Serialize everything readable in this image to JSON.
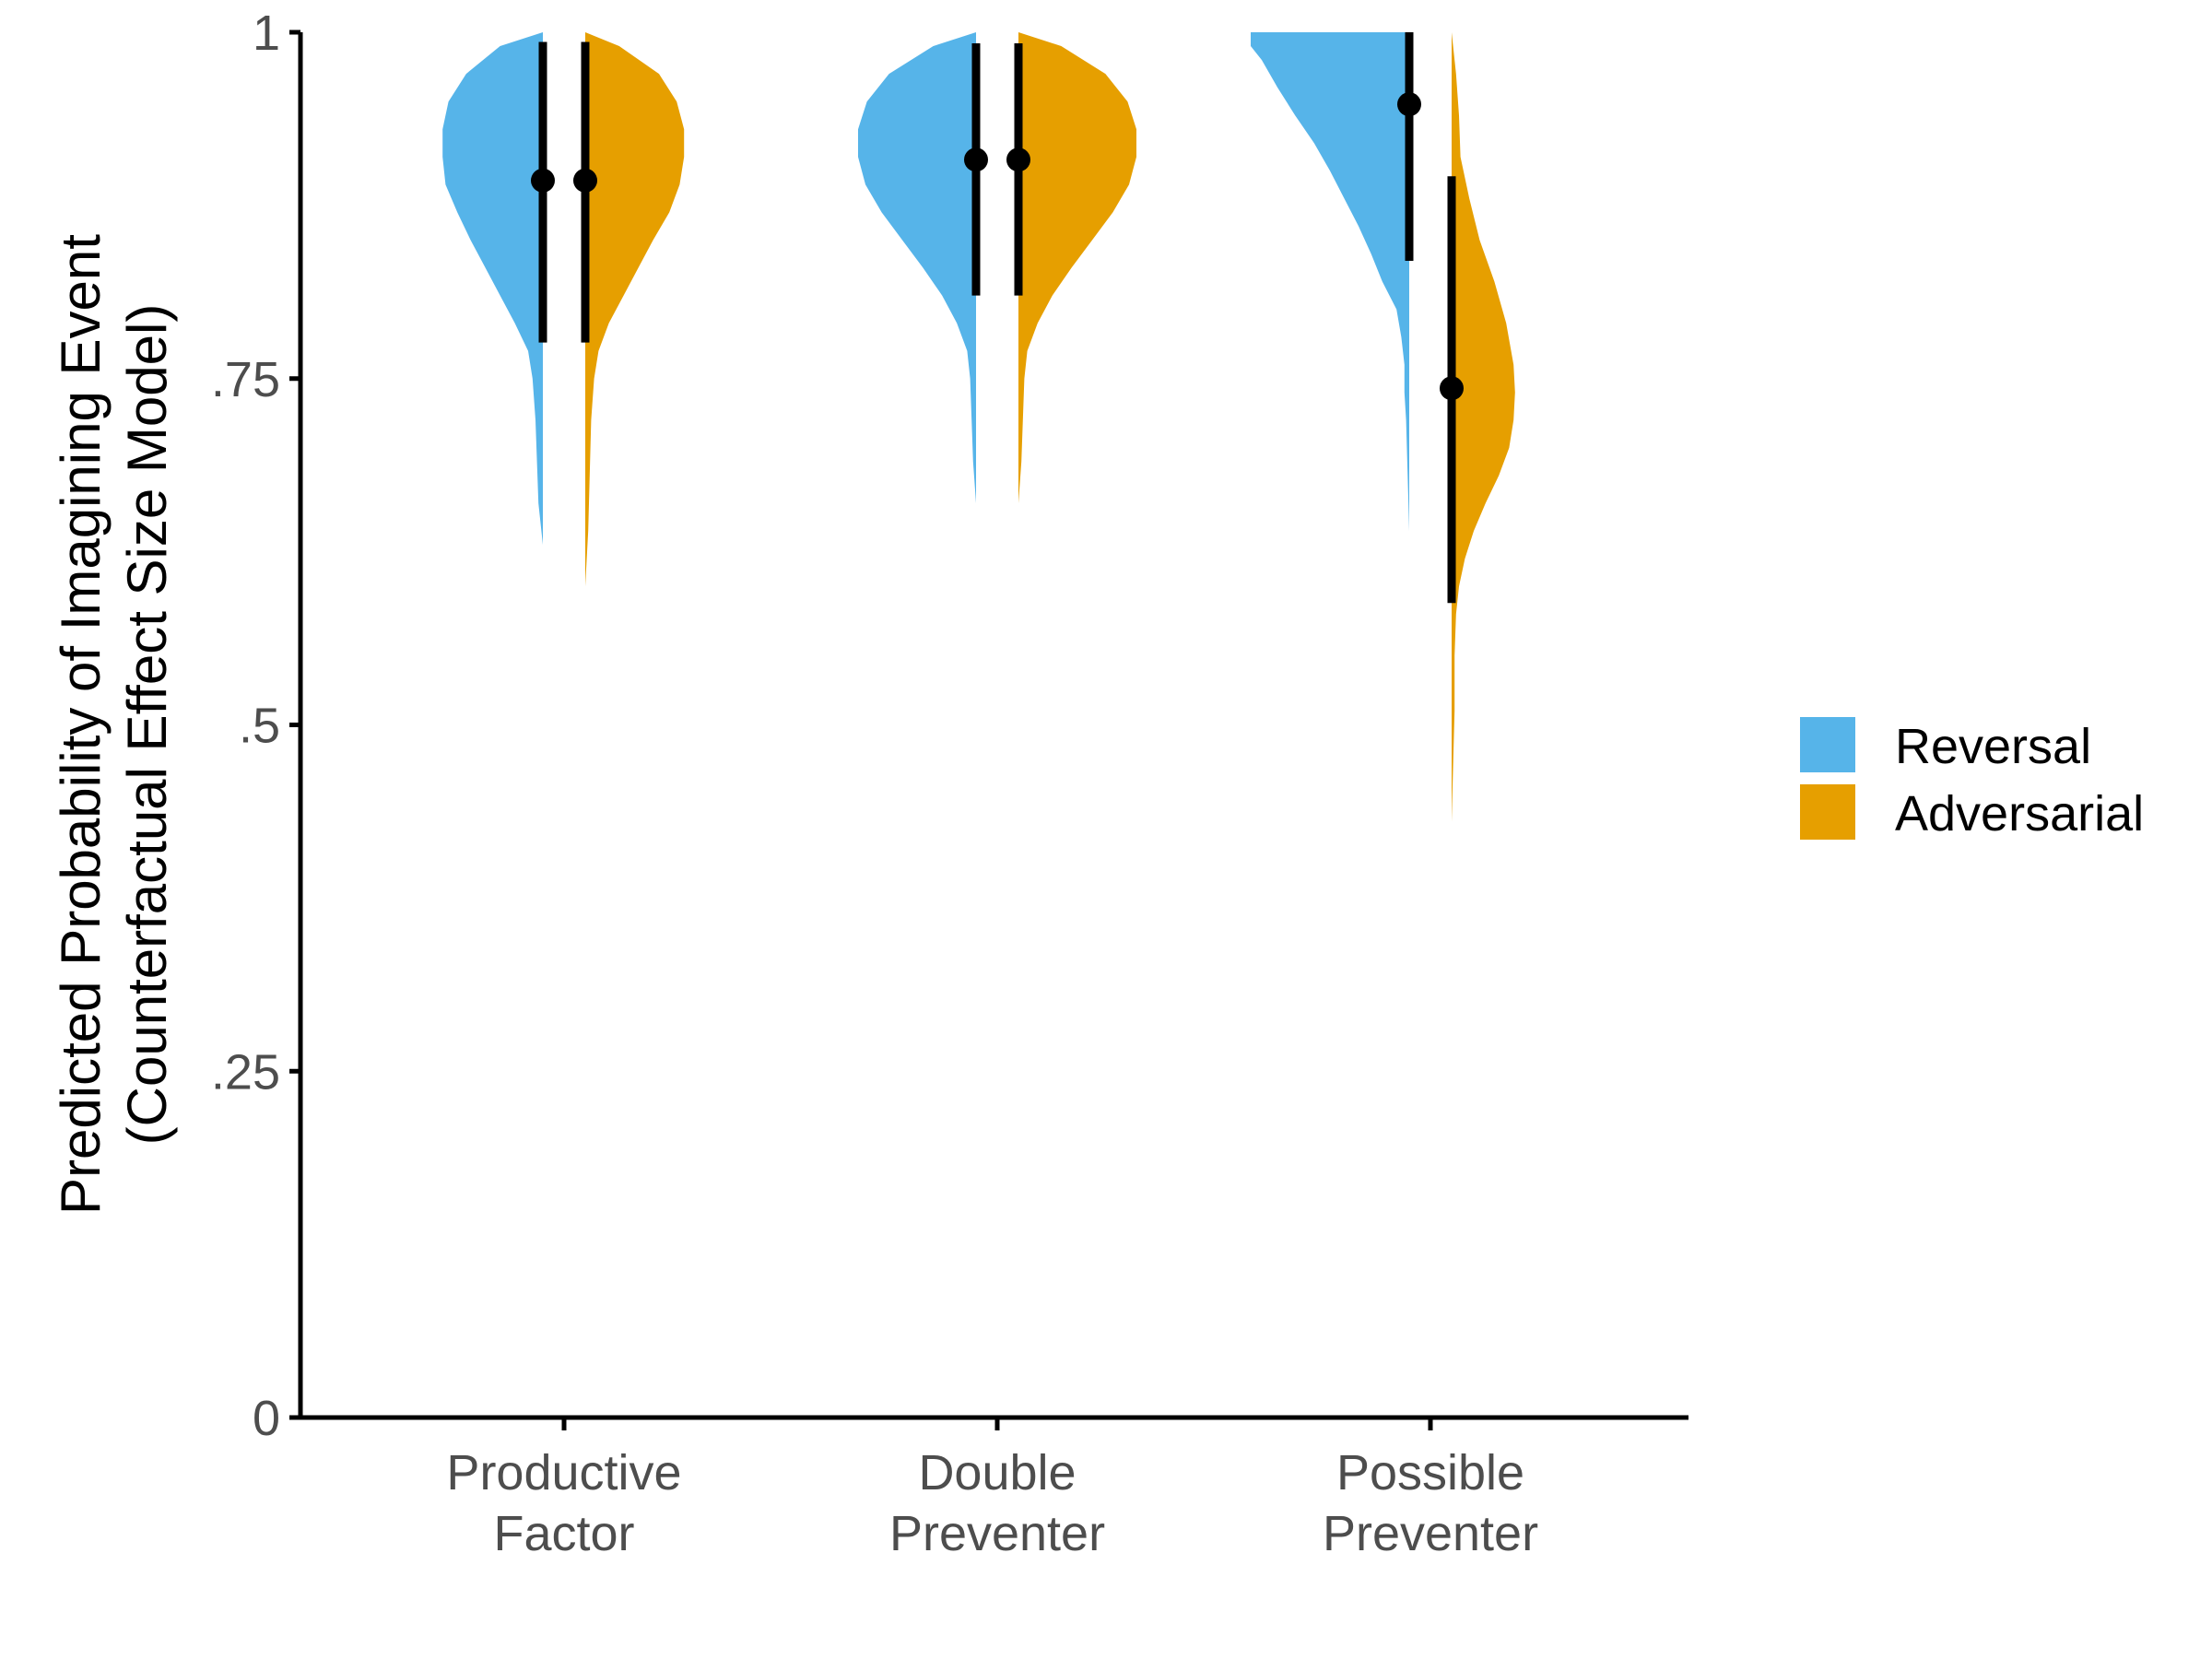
{
  "chart_data": {
    "type": "violin",
    "ylabel_lines": [
      "Predicted Probability of Imagining Event",
      "(Counterfactual Effect Size Model)"
    ],
    "xlabel": "",
    "ylim": [
      0,
      1
    ],
    "y_ticks": [
      {
        "value": 0,
        "label": "0"
      },
      {
        "value": 0.25,
        "label": ".25"
      },
      {
        "value": 0.5,
        "label": ".5"
      },
      {
        "value": 0.75,
        "label": ".75"
      },
      {
        "value": 1,
        "label": "1"
      }
    ],
    "categories": [
      {
        "lines": [
          "Productive",
          "Factor"
        ]
      },
      {
        "lines": [
          "Double",
          "Preventer"
        ]
      },
      {
        "lines": [
          "Possible",
          "Preventer"
        ]
      }
    ],
    "series": [
      {
        "name": "Reversal",
        "color": "#56B4E9",
        "summary": [
          {
            "estimate": 0.893,
            "lower": 0.776,
            "upper": 0.993
          },
          {
            "estimate": 0.908,
            "lower": 0.81,
            "upper": 0.992
          },
          {
            "estimate": 0.948,
            "lower": 0.835,
            "upper": 1.0
          }
        ]
      },
      {
        "name": "Adversarial",
        "color": "#E69F00",
        "summary": [
          {
            "estimate": 0.893,
            "lower": 0.776,
            "upper": 0.993
          },
          {
            "estimate": 0.908,
            "lower": 0.81,
            "upper": 0.992
          },
          {
            "estimate": 0.743,
            "lower": 0.588,
            "upper": 0.896
          }
        ]
      }
    ],
    "densities": [
      {
        "category": 0,
        "series": "Reversal",
        "profile": [
          [
            1.0,
            0.0
          ],
          [
            0.99,
            0.29
          ],
          [
            0.97,
            0.52
          ],
          [
            0.95,
            0.64
          ],
          [
            0.93,
            0.68
          ],
          [
            0.91,
            0.68
          ],
          [
            0.89,
            0.66
          ],
          [
            0.87,
            0.58
          ],
          [
            0.85,
            0.49
          ],
          [
            0.83,
            0.39
          ],
          [
            0.81,
            0.29
          ],
          [
            0.79,
            0.19
          ],
          [
            0.77,
            0.1
          ],
          [
            0.75,
            0.07
          ],
          [
            0.72,
            0.05
          ],
          [
            0.69,
            0.04
          ],
          [
            0.66,
            0.03
          ],
          [
            0.63,
            0.0
          ]
        ]
      },
      {
        "category": 0,
        "series": "Adversarial",
        "profile": [
          [
            1.0,
            0.0
          ],
          [
            0.99,
            0.23
          ],
          [
            0.97,
            0.5
          ],
          [
            0.95,
            0.62
          ],
          [
            0.93,
            0.67
          ],
          [
            0.91,
            0.67
          ],
          [
            0.89,
            0.64
          ],
          [
            0.87,
            0.57
          ],
          [
            0.85,
            0.46
          ],
          [
            0.83,
            0.36
          ],
          [
            0.81,
            0.26
          ],
          [
            0.79,
            0.16
          ],
          [
            0.77,
            0.09
          ],
          [
            0.75,
            0.06
          ],
          [
            0.72,
            0.04
          ],
          [
            0.68,
            0.03
          ],
          [
            0.64,
            0.02
          ],
          [
            0.6,
            0.0
          ]
        ]
      },
      {
        "category": 1,
        "series": "Reversal",
        "profile": [
          [
            1.0,
            0.0
          ],
          [
            0.99,
            0.29
          ],
          [
            0.97,
            0.59
          ],
          [
            0.95,
            0.74
          ],
          [
            0.93,
            0.8
          ],
          [
            0.91,
            0.8
          ],
          [
            0.89,
            0.75
          ],
          [
            0.87,
            0.64
          ],
          [
            0.85,
            0.5
          ],
          [
            0.83,
            0.36
          ],
          [
            0.81,
            0.23
          ],
          [
            0.79,
            0.13
          ],
          [
            0.77,
            0.06
          ],
          [
            0.75,
            0.04
          ],
          [
            0.72,
            0.03
          ],
          [
            0.69,
            0.02
          ],
          [
            0.66,
            0.0
          ]
        ]
      },
      {
        "category": 1,
        "series": "Adversarial",
        "profile": [
          [
            1.0,
            0.0
          ],
          [
            0.99,
            0.29
          ],
          [
            0.97,
            0.59
          ],
          [
            0.95,
            0.74
          ],
          [
            0.93,
            0.8
          ],
          [
            0.91,
            0.8
          ],
          [
            0.89,
            0.75
          ],
          [
            0.87,
            0.64
          ],
          [
            0.85,
            0.5
          ],
          [
            0.83,
            0.36
          ],
          [
            0.81,
            0.23
          ],
          [
            0.79,
            0.13
          ],
          [
            0.77,
            0.06
          ],
          [
            0.75,
            0.04
          ],
          [
            0.72,
            0.03
          ],
          [
            0.69,
            0.02
          ],
          [
            0.66,
            0.0
          ]
        ]
      }
    ],
    "densities_pp": [
      {
        "category": 2,
        "series": "Reversal",
        "profile": [
          [
            1.0,
            1.0
          ],
          [
            0.99,
            1.0
          ],
          [
            0.98,
            0.93
          ],
          [
            0.96,
            0.83
          ],
          [
            0.94,
            0.72
          ],
          [
            0.92,
            0.6
          ],
          [
            0.9,
            0.5
          ],
          [
            0.88,
            0.41
          ],
          [
            0.86,
            0.32
          ],
          [
            0.84,
            0.24
          ],
          [
            0.82,
            0.17
          ],
          [
            0.8,
            0.08
          ],
          [
            0.78,
            0.05
          ],
          [
            0.76,
            0.03
          ],
          [
            0.74,
            0.03
          ],
          [
            0.72,
            0.02
          ],
          [
            0.68,
            0.01
          ],
          [
            0.64,
            0.0
          ]
        ]
      },
      {
        "category": 2,
        "series": "Adversarial",
        "profile": [
          [
            1.0,
            0.0
          ],
          [
            0.97,
            0.03
          ],
          [
            0.94,
            0.05
          ],
          [
            0.91,
            0.06
          ],
          [
            0.88,
            0.12
          ],
          [
            0.85,
            0.19
          ],
          [
            0.82,
            0.29
          ],
          [
            0.79,
            0.37
          ],
          [
            0.76,
            0.42
          ],
          [
            0.74,
            0.43
          ],
          [
            0.72,
            0.42
          ],
          [
            0.7,
            0.39
          ],
          [
            0.68,
            0.32
          ],
          [
            0.66,
            0.23
          ],
          [
            0.64,
            0.15
          ],
          [
            0.62,
            0.09
          ],
          [
            0.6,
            0.05
          ],
          [
            0.58,
            0.03
          ],
          [
            0.55,
            0.02
          ],
          [
            0.51,
            0.02
          ],
          [
            0.47,
            0.01
          ],
          [
            0.43,
            0.0
          ]
        ]
      }
    ],
    "grid": false,
    "legend_position": "right"
  }
}
